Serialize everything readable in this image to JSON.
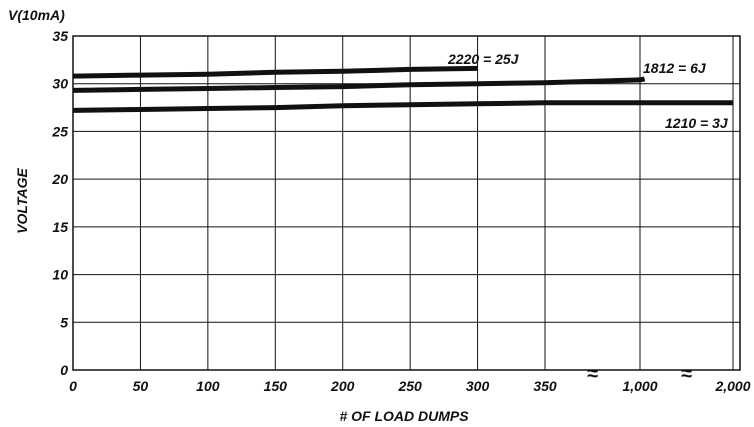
{
  "chart_data": {
    "type": "line",
    "title": "",
    "top_label": "V(10mA)",
    "xlabel": "# OF LOAD DUMPS",
    "ylabel": "VOLTAGE",
    "ylim": [
      0,
      35
    ],
    "grid": true,
    "y_ticks": [
      "0",
      "5",
      "10",
      "15",
      "20",
      "25",
      "30",
      "35"
    ],
    "x_ticks": [
      "0",
      "50",
      "100",
      "150",
      "200",
      "250",
      "300",
      "350",
      "1,000",
      "2,000"
    ],
    "x_break_symbol": "≈",
    "x_break_after": [
      "350",
      "1,000"
    ],
    "series": [
      {
        "name": "2220 = 25J",
        "points": [
          [
            0,
            30.8
          ],
          [
            50,
            30.9
          ],
          [
            100,
            31.0
          ],
          [
            150,
            31.2
          ],
          [
            200,
            31.3
          ],
          [
            250,
            31.5
          ],
          [
            300,
            31.6
          ]
        ]
      },
      {
        "name": "1812 = 6J",
        "points": [
          [
            0,
            29.3
          ],
          [
            50,
            29.4
          ],
          [
            100,
            29.5
          ],
          [
            150,
            29.6
          ],
          [
            200,
            29.7
          ],
          [
            250,
            29.9
          ],
          [
            300,
            30.0
          ],
          [
            350,
            30.1
          ],
          [
            1000,
            30.4
          ],
          [
            1050,
            30.5
          ]
        ]
      },
      {
        "name": "1210 = 3J",
        "points": [
          [
            0,
            27.2
          ],
          [
            50,
            27.3
          ],
          [
            100,
            27.4
          ],
          [
            150,
            27.5
          ],
          [
            200,
            27.7
          ],
          [
            250,
            27.8
          ],
          [
            300,
            27.9
          ],
          [
            350,
            28.0
          ],
          [
            1000,
            28.0
          ],
          [
            2000,
            28.0
          ]
        ]
      }
    ]
  }
}
